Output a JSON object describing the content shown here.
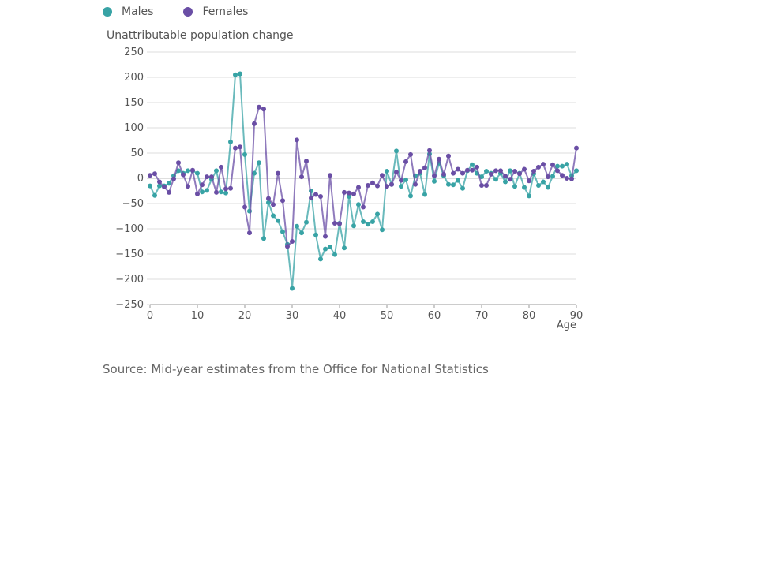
{
  "legend": [
    {
      "name": "Males",
      "color": "#38a3a5"
    },
    {
      "name": "Females",
      "color": "#6a4ea5"
    }
  ],
  "source": "Source: Mid-year estimates from the Office for National Statistics",
  "chart_data": {
    "type": "line",
    "ylabel": "Unattributable population change",
    "xlabel": "Age",
    "xlim": [
      0,
      90
    ],
    "ylim": [
      -250,
      250
    ],
    "x_ticks": [
      0,
      10,
      20,
      30,
      40,
      50,
      60,
      70,
      80,
      90
    ],
    "y_ticks": [
      250,
      200,
      150,
      100,
      50,
      0,
      -50,
      -100,
      -150,
      -200,
      -250
    ],
    "y_tick_labels": [
      "250",
      "200",
      "150",
      "100",
      "50",
      "0",
      "−50",
      "−100",
      "−150",
      "−200",
      "−250"
    ],
    "grid": true,
    "legend_position": "top-left",
    "x": [
      0,
      1,
      2,
      3,
      4,
      5,
      6,
      7,
      8,
      9,
      10,
      11,
      12,
      13,
      14,
      15,
      16,
      17,
      18,
      19,
      20,
      21,
      22,
      23,
      24,
      25,
      26,
      27,
      28,
      29,
      30,
      31,
      32,
      33,
      34,
      35,
      36,
      37,
      38,
      39,
      40,
      41,
      42,
      43,
      44,
      45,
      46,
      47,
      48,
      49,
      50,
      51,
      52,
      53,
      54,
      55,
      56,
      57,
      58,
      59,
      60,
      61,
      62,
      63,
      64,
      65,
      66,
      67,
      68,
      69,
      70,
      71,
      72,
      73,
      74,
      75,
      76,
      77,
      78,
      79,
      80,
      81,
      82,
      83,
      84,
      85,
      86,
      87,
      88,
      89,
      90
    ],
    "series": [
      {
        "name": "Males",
        "color": "#38a3a5",
        "values": [
          -15,
          -34,
          -15,
          -15,
          -10,
          5,
          15,
          10,
          15,
          15,
          10,
          -27,
          -24,
          -2,
          15,
          -27,
          -29,
          72,
          205,
          207,
          47,
          -65,
          10,
          31,
          -119,
          -48,
          -74,
          -84,
          -106,
          -131,
          -218,
          -95,
          -108,
          -87,
          -25,
          -112,
          -160,
          -140,
          -136,
          -151,
          -89,
          -138,
          -36,
          -94,
          -52,
          -86,
          -91,
          -86,
          -71,
          -102,
          14,
          -12,
          54,
          -16,
          -3,
          -35,
          5,
          10,
          -32,
          48,
          -6,
          30,
          5,
          -12,
          -13,
          -4,
          -20,
          15,
          27,
          10,
          3,
          14,
          10,
          -2,
          10,
          -7,
          15,
          -16,
          10,
          -18,
          -35,
          9,
          -14,
          -7,
          -18,
          4,
          24,
          24,
          28,
          5,
          15
        ]
      },
      {
        "name": "Females",
        "color": "#6a4ea5",
        "values": [
          6,
          9,
          -7,
          -17,
          -28,
          -1,
          31,
          7,
          -16,
          16,
          -31,
          -13,
          3,
          3,
          -28,
          22,
          -21,
          -20,
          60,
          62,
          -57,
          -108,
          108,
          141,
          137,
          -40,
          -52,
          10,
          -44,
          -135,
          -125,
          76,
          3,
          34,
          -39,
          -32,
          -36,
          -115,
          6,
          -89,
          -90,
          -28,
          -29,
          -31,
          -18,
          -57,
          -14,
          -9,
          -15,
          6,
          -16,
          -12,
          12,
          -4,
          33,
          47,
          -12,
          14,
          21,
          55,
          5,
          38,
          8,
          44,
          10,
          18,
          10,
          16,
          16,
          22,
          -14,
          -14,
          8,
          15,
          15,
          4,
          -2,
          14,
          9,
          18,
          -5,
          14,
          22,
          28,
          3,
          27,
          15,
          6,
          0,
          -1,
          60
        ]
      }
    ]
  }
}
